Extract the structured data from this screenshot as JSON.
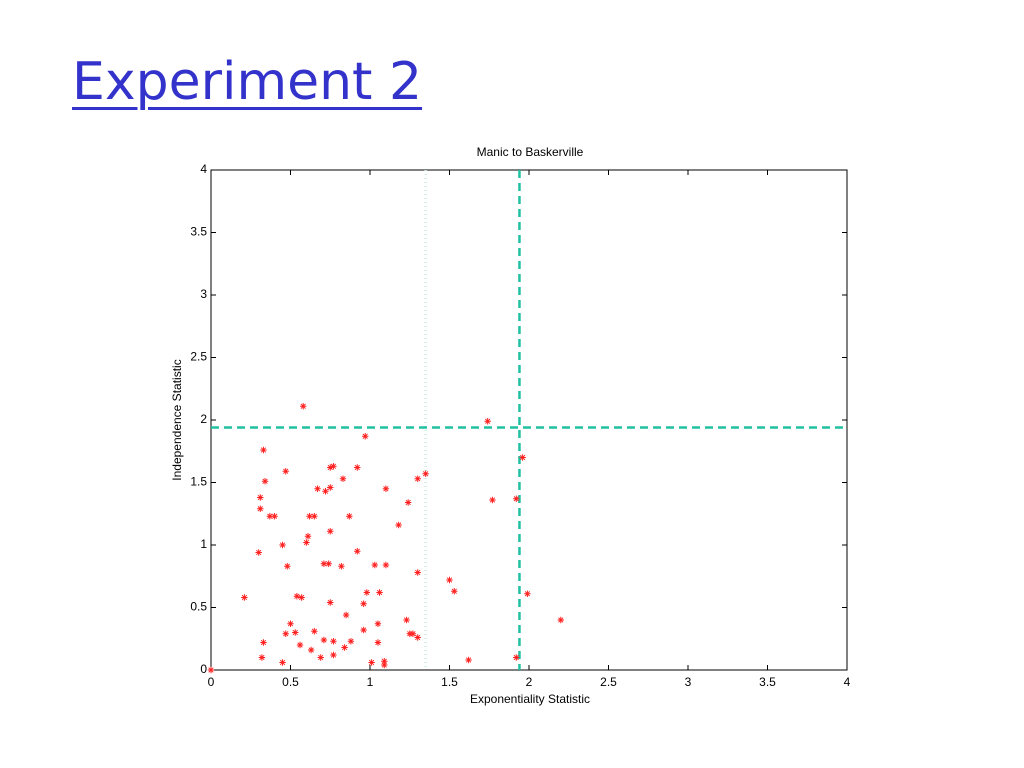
{
  "slide_title": "Experiment 2",
  "chart_data": {
    "type": "scatter",
    "title": "Manic to Baskerville",
    "xlabel": "Exponentiality Statistic",
    "ylabel": "Independence Statistic",
    "xlim": [
      0,
      4
    ],
    "ylim": [
      0,
      4
    ],
    "xticks": [
      0,
      0.5,
      1,
      1.5,
      2,
      2.5,
      3,
      3.5,
      4
    ],
    "yticks": [
      0,
      0.5,
      1,
      1.5,
      2,
      2.5,
      3,
      3.5,
      4
    ],
    "grid": false,
    "series": [
      {
        "color": "#ff2020",
        "marker": "asterisk",
        "x": [
          0.58,
          1.74,
          0.97,
          0.33,
          1.96,
          0.77,
          0.75,
          0.92,
          0.47,
          1.35,
          1.3,
          0.34,
          0.83,
          0.72,
          0.75,
          0.67,
          1.1,
          0.31,
          1.77,
          1.92,
          1.24,
          0.31,
          0.37,
          0.4,
          0.62,
          0.65,
          0.87,
          1.18,
          0.61,
          0.75,
          0.6,
          0.45,
          0.92,
          0.3,
          0.71,
          0.74,
          0.82,
          0.48,
          1.03,
          1.1,
          1.3,
          1.5,
          1.53,
          1.06,
          0.98,
          1.99,
          0.21,
          0.54,
          0.57,
          0.75,
          0.96,
          0.85,
          2.2,
          1.23,
          0.5,
          1.05,
          0.96,
          0.65,
          1.25,
          1.27,
          0.47,
          0.53,
          1.3,
          0.71,
          0.77,
          0.88,
          1.05,
          0.33,
          0.56,
          0.84,
          0.63,
          0.77,
          0.69,
          0.32,
          1.92,
          1.62,
          1.09,
          0.45,
          1.01,
          1.09,
          0
        ],
        "y": [
          2.11,
          1.99,
          1.87,
          1.76,
          1.7,
          1.63,
          1.62,
          1.62,
          1.59,
          1.57,
          1.53,
          1.51,
          1.53,
          1.43,
          1.46,
          1.45,
          1.45,
          1.38,
          1.36,
          1.37,
          1.34,
          1.29,
          1.23,
          1.23,
          1.23,
          1.23,
          1.23,
          1.16,
          1.07,
          1.11,
          1.02,
          1.0,
          0.95,
          0.94,
          0.85,
          0.85,
          0.83,
          0.83,
          0.84,
          0.84,
          0.78,
          0.72,
          0.63,
          0.62,
          0.62,
          0.61,
          0.58,
          0.59,
          0.58,
          0.54,
          0.53,
          0.44,
          0.4,
          0.4,
          0.37,
          0.37,
          0.32,
          0.31,
          0.29,
          0.29,
          0.29,
          0.3,
          0.26,
          0.24,
          0.23,
          0.23,
          0.22,
          0.22,
          0.2,
          0.18,
          0.16,
          0.12,
          0.1,
          0.1,
          0.1,
          0.08,
          0.07,
          0.06,
          0.06,
          0.04,
          0
        ]
      }
    ],
    "vlines": [
      {
        "value": 1.94,
        "color": "#20c0a0",
        "style": "dashed"
      },
      {
        "value": 1.35,
        "color": "#c8eedd",
        "style": "dotted"
      }
    ],
    "hlines": [
      {
        "value": 1.94,
        "color": "#20c0a0",
        "style": "dashed"
      }
    ]
  }
}
